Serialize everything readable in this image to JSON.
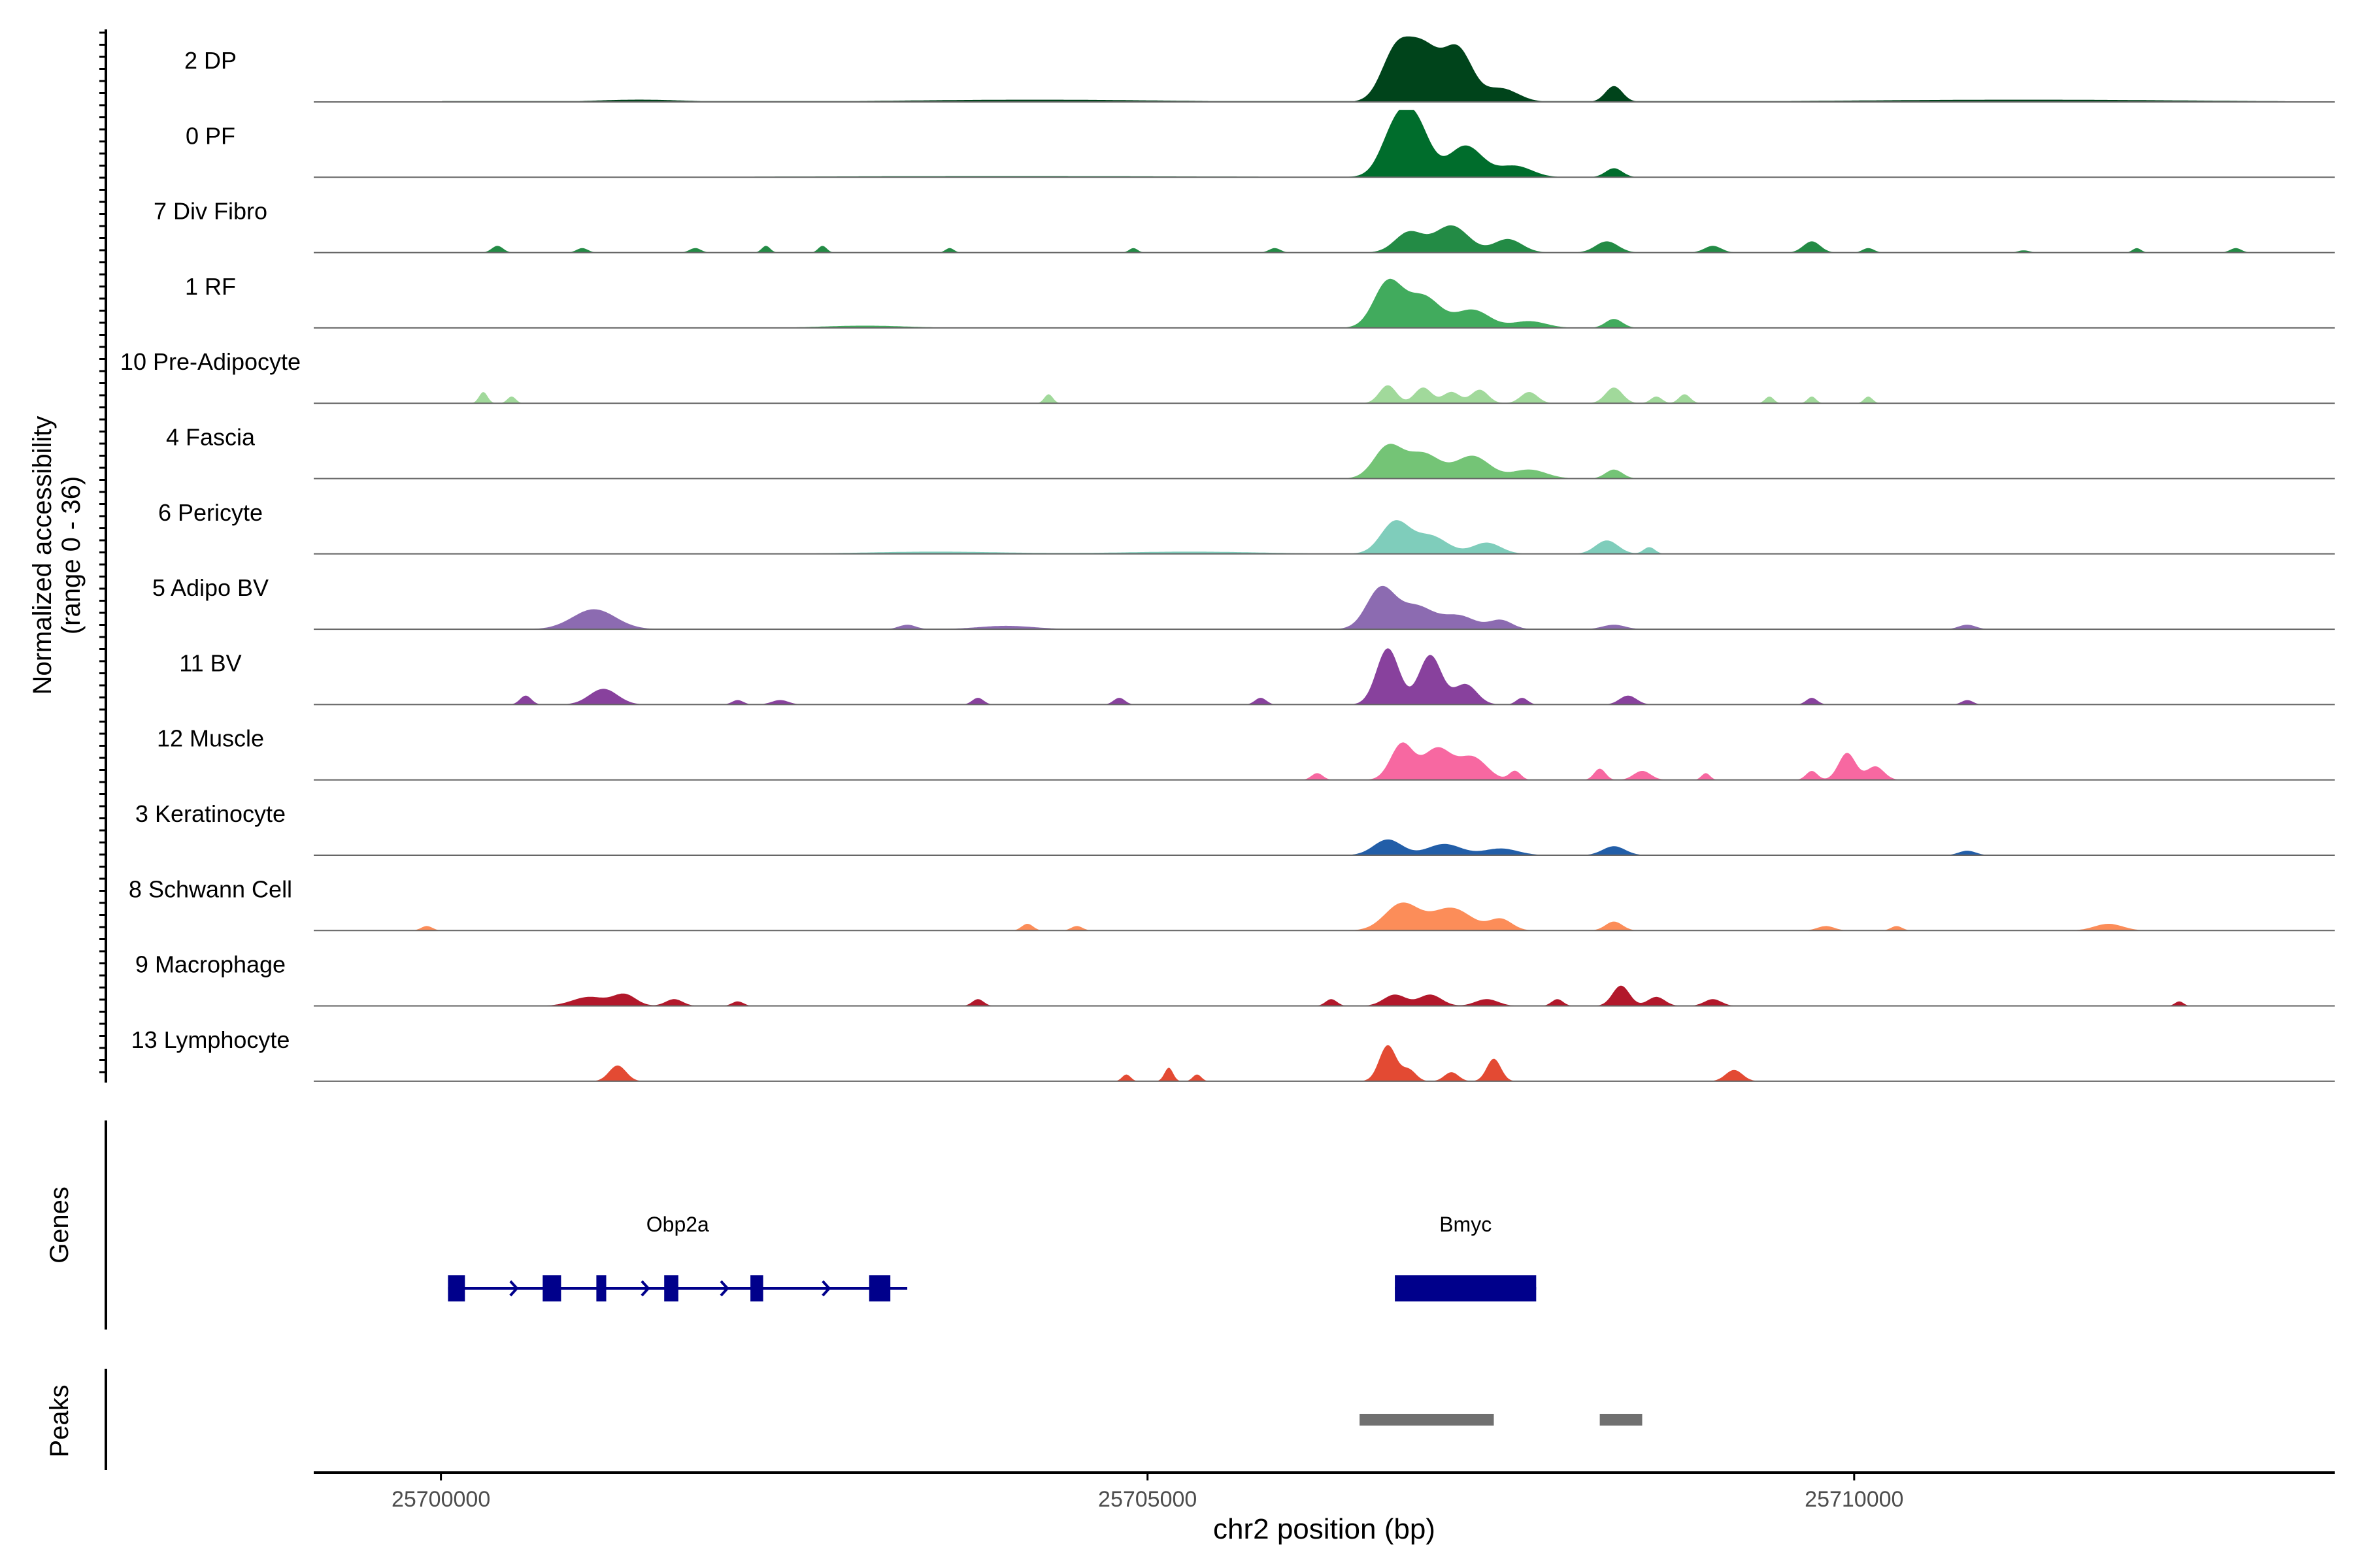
{
  "chart_data": {
    "type": "area",
    "y_axis_label_line1": "Normalized accessibility",
    "y_axis_label_line2": "(range 0 - 36)",
    "y_range": [
      0,
      36
    ],
    "x_axis_label": "chr2 position (bp)",
    "x_ticks": [
      25700000,
      25705000,
      25710000
    ],
    "x_tick_labels": [
      "25700000",
      "25705000",
      "25710000"
    ],
    "x_range": [
      25699100,
      25713400
    ],
    "genes_label": "Genes",
    "peaks_label": "Peaks",
    "tracks": [
      {
        "name": "2 DP",
        "color": "#00441b",
        "baseline": 1.0,
        "peaks": [
          [
            25706750,
            20,
            100
          ],
          [
            25706950,
            24,
            120
          ],
          [
            25707200,
            22,
            100
          ],
          [
            25707500,
            6,
            120
          ],
          [
            25708300,
            7,
            60
          ],
          [
            25704200,
            1,
            900
          ],
          [
            25711200,
            1,
            1200
          ],
          [
            25701400,
            1,
            300
          ]
        ]
      },
      {
        "name": "0 PF",
        "color": "#006d2c",
        "baseline": 0.6,
        "peaks": [
          [
            25706750,
            20,
            100
          ],
          [
            25706900,
            22,
            100
          ],
          [
            25707250,
            14,
            120
          ],
          [
            25707600,
            5,
            120
          ],
          [
            25708300,
            4,
            60
          ],
          [
            25704000,
            0.5,
            1500
          ]
        ]
      },
      {
        "name": "7 Div Fibro",
        "color": "#238b45",
        "baseline": 0,
        "peaks": [
          [
            25700400,
            3,
            40
          ],
          [
            25701000,
            2,
            40
          ],
          [
            25701800,
            2,
            40
          ],
          [
            25702300,
            3,
            30
          ],
          [
            25702700,
            3,
            30
          ],
          [
            25703600,
            2,
            30
          ],
          [
            25704900,
            2,
            30
          ],
          [
            25705900,
            2,
            40
          ],
          [
            25706850,
            9,
            100
          ],
          [
            25707150,
            12,
            120
          ],
          [
            25707550,
            6,
            100
          ],
          [
            25708250,
            5,
            80
          ],
          [
            25709000,
            3,
            60
          ],
          [
            25709700,
            5,
            60
          ],
          [
            25710100,
            2,
            40
          ],
          [
            25711200,
            1,
            40
          ],
          [
            25712000,
            2,
            30
          ],
          [
            25712700,
            2,
            40
          ]
        ]
      },
      {
        "name": "1 RF",
        "color": "#41ab5d",
        "baseline": 0.5,
        "peaks": [
          [
            25706700,
            20,
            100
          ],
          [
            25706950,
            14,
            120
          ],
          [
            25707300,
            8,
            120
          ],
          [
            25707700,
            3,
            120
          ],
          [
            25708300,
            4,
            60
          ],
          [
            25703000,
            1,
            300
          ]
        ]
      },
      {
        "name": "10 Pre-Adipocyte",
        "color": "#a1d99b",
        "baseline": 0,
        "peaks": [
          [
            25700300,
            5,
            30
          ],
          [
            25700500,
            3,
            30
          ],
          [
            25704300,
            4,
            30
          ],
          [
            25706700,
            8,
            60
          ],
          [
            25706950,
            7,
            60
          ],
          [
            25707150,
            5,
            60
          ],
          [
            25707350,
            6,
            60
          ],
          [
            25707700,
            5,
            60
          ],
          [
            25708300,
            7,
            60
          ],
          [
            25708600,
            3,
            40
          ],
          [
            25708800,
            4,
            40
          ],
          [
            25709400,
            3,
            30
          ],
          [
            25709700,
            3,
            30
          ],
          [
            25710100,
            3,
            30
          ]
        ]
      },
      {
        "name": "4 Fascia",
        "color": "#74c476",
        "baseline": 0.6,
        "peaks": [
          [
            25706700,
            14,
            100
          ],
          [
            25706950,
            11,
            120
          ],
          [
            25707300,
            10,
            120
          ],
          [
            25707700,
            4,
            120
          ],
          [
            25708300,
            4,
            60
          ]
        ]
      },
      {
        "name": "6 Pericyte",
        "color": "#7fcdbb",
        "baseline": 0.5,
        "peaks": [
          [
            25706750,
            14,
            100
          ],
          [
            25707000,
            8,
            120
          ],
          [
            25707400,
            5,
            100
          ],
          [
            25708250,
            6,
            80
          ],
          [
            25708550,
            3,
            40
          ],
          [
            25705300,
            1,
            500
          ],
          [
            25703500,
            1,
            500
          ]
        ]
      },
      {
        "name": "5 Adipo BV",
        "color": "#8c6bb1",
        "baseline": 0.4,
        "peaks": [
          [
            25701100,
            6,
            150
          ],
          [
            25701050,
            3,
            150
          ],
          [
            25703300,
            2,
            60
          ],
          [
            25704000,
            1.5,
            200
          ],
          [
            25706650,
            18,
            100
          ],
          [
            25706900,
            10,
            120
          ],
          [
            25707200,
            6,
            120
          ],
          [
            25707500,
            4,
            80
          ],
          [
            25708300,
            2,
            80
          ],
          [
            25710800,
            2,
            60
          ]
        ]
      },
      {
        "name": "11 BV",
        "color": "#88419d",
        "baseline": 0,
        "peaks": [
          [
            25700600,
            4,
            40
          ],
          [
            25701150,
            7,
            100
          ],
          [
            25702100,
            2,
            40
          ],
          [
            25702400,
            2,
            60
          ],
          [
            25703800,
            3,
            40
          ],
          [
            25704800,
            3,
            40
          ],
          [
            25705800,
            3,
            40
          ],
          [
            25706700,
            25,
            80
          ],
          [
            25707000,
            22,
            80
          ],
          [
            25707250,
            9,
            80
          ],
          [
            25707650,
            3,
            40
          ],
          [
            25708400,
            4,
            60
          ],
          [
            25709700,
            3,
            40
          ],
          [
            25710800,
            2,
            40
          ]
        ]
      },
      {
        "name": "12 Muscle",
        "color": "#f768a1",
        "baseline": 0,
        "peaks": [
          [
            25706200,
            3,
            40
          ],
          [
            25706800,
            16,
            80
          ],
          [
            25707050,
            14,
            100
          ],
          [
            25707300,
            10,
            100
          ],
          [
            25707600,
            4,
            40
          ],
          [
            25708200,
            5,
            40
          ],
          [
            25708500,
            4,
            60
          ],
          [
            25708950,
            3,
            30
          ],
          [
            25709700,
            4,
            40
          ],
          [
            25709950,
            12,
            60
          ],
          [
            25710150,
            6,
            60
          ]
        ]
      },
      {
        "name": "3 Keratinocyte",
        "color": "#225ea8",
        "baseline": 0.4,
        "peaks": [
          [
            25706700,
            7,
            100
          ],
          [
            25707100,
            5,
            120
          ],
          [
            25707500,
            3,
            120
          ],
          [
            25708300,
            4,
            80
          ],
          [
            25710800,
            2,
            60
          ]
        ]
      },
      {
        "name": "8 Schwann Cell",
        "color": "#fc8d59",
        "baseline": 0,
        "peaks": [
          [
            25699900,
            2,
            40
          ],
          [
            25704150,
            3,
            40
          ],
          [
            25704500,
            2,
            40
          ],
          [
            25706800,
            12,
            120
          ],
          [
            25707150,
            10,
            140
          ],
          [
            25707500,
            5,
            80
          ],
          [
            25708300,
            4,
            60
          ],
          [
            25709800,
            2,
            60
          ],
          [
            25710300,
            2,
            40
          ],
          [
            25711800,
            3,
            100
          ]
        ]
      },
      {
        "name": "9 Macrophage",
        "color": "#b2182b",
        "baseline": 0,
        "peaks": [
          [
            25701050,
            4,
            120
          ],
          [
            25701300,
            5,
            80
          ],
          [
            25701650,
            3,
            60
          ],
          [
            25702100,
            2,
            40
          ],
          [
            25703800,
            3,
            40
          ],
          [
            25706300,
            3,
            40
          ],
          [
            25706750,
            5,
            80
          ],
          [
            25707000,
            5,
            80
          ],
          [
            25707400,
            3,
            80
          ],
          [
            25707900,
            3,
            40
          ],
          [
            25708350,
            9,
            60
          ],
          [
            25708600,
            4,
            60
          ],
          [
            25709000,
            3,
            60
          ],
          [
            25712300,
            2,
            30
          ]
        ]
      },
      {
        "name": "13 Lymphocyte",
        "color": "#e34a33",
        "baseline": 0,
        "peaks": [
          [
            25701250,
            7,
            60
          ],
          [
            25704850,
            3,
            30
          ],
          [
            25705150,
            6,
            30
          ],
          [
            25705350,
            3,
            30
          ],
          [
            25706700,
            16,
            60
          ],
          [
            25706850,
            5,
            50
          ],
          [
            25707150,
            4,
            50
          ],
          [
            25707450,
            10,
            50
          ],
          [
            25709150,
            5,
            60
          ]
        ]
      }
    ],
    "genes": [
      {
        "name": "Obp2a",
        "start": 25700050,
        "end": 25703300,
        "strand": "+",
        "exons": [
          [
            25700050,
            25700170
          ],
          [
            25700720,
            25700850
          ],
          [
            25701100,
            25701170
          ],
          [
            25701580,
            25701680
          ],
          [
            25702190,
            25702280
          ],
          [
            25703030,
            25703180
          ]
        ],
        "color": "#00008b"
      },
      {
        "name": "Bmyc",
        "start": 25706750,
        "end": 25707750,
        "strand": "+",
        "exons": [
          [
            25706750,
            25707750
          ]
        ],
        "color": "#00008b"
      }
    ],
    "peak_regions": [
      [
        25706500,
        25707450
      ],
      [
        25708200,
        25708500
      ]
    ],
    "peak_color": "#707070"
  }
}
